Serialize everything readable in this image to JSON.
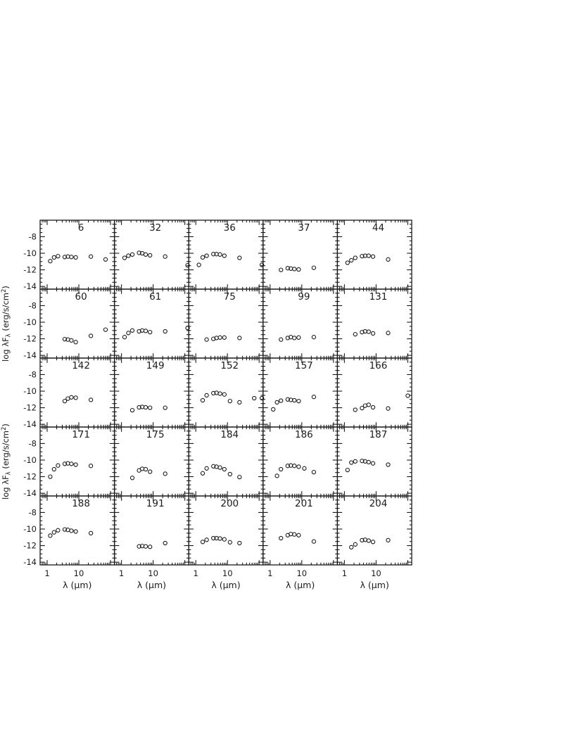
{
  "page": {
    "colors": {
      "ink": "#1a1a1a",
      "background": "#ffffff"
    }
  },
  "chart_data": {
    "type": "scatter",
    "title": "",
    "description": "5x5 grid of spectral energy distributions (open circles), log-log panels",
    "grid": {
      "rows": 5,
      "cols": 5
    },
    "xlabel": "λ (μm)",
    "ylabel_parts": {
      "pre": "log λF",
      "sub": "λ",
      "mid": " (erg/s/cm",
      "sup": "2",
      "post": ")"
    },
    "xscale": "log",
    "xlim": [
      0.6,
      140
    ],
    "xticks_major": [
      1,
      10,
      100
    ],
    "xticks_minor": [
      0.7,
      0.8,
      0.9,
      2,
      3,
      4,
      5,
      6,
      7,
      8,
      9,
      20,
      30,
      40,
      50,
      60,
      70,
      80,
      90
    ],
    "xticklabels": [
      "1",
      "10"
    ],
    "ylim": [
      -14.3,
      -6.0
    ],
    "yticks": [
      -8,
      -10,
      -12,
      -14
    ],
    "yticklabels": [
      "-8",
      "-10",
      "-12",
      "-14"
    ],
    "ytick_minor_step": 0.5,
    "legend": null,
    "gridlines": false,
    "marker": "open-circle",
    "panels": [
      {
        "label": "6",
        "points": [
          [
            1.25,
            -10.95
          ],
          [
            1.65,
            -10.5
          ],
          [
            2.2,
            -10.35
          ],
          [
            3.6,
            -10.45
          ],
          [
            4.5,
            -10.4
          ],
          [
            5.8,
            -10.45
          ],
          [
            8,
            -10.5
          ],
          [
            24,
            -10.4
          ],
          [
            70,
            -10.75
          ]
        ]
      },
      {
        "label": "32",
        "points": [
          [
            1.25,
            -10.55
          ],
          [
            1.65,
            -10.3
          ],
          [
            2.2,
            -10.15
          ],
          [
            3.6,
            -9.95
          ],
          [
            4.5,
            -10.0
          ],
          [
            5.8,
            -10.15
          ],
          [
            8,
            -10.25
          ],
          [
            24,
            -10.4
          ]
        ]
      },
      {
        "label": "36",
        "points": [
          [
            0.55,
            -11.45
          ],
          [
            1.25,
            -11.4
          ],
          [
            1.65,
            -10.5
          ],
          [
            2.2,
            -10.3
          ],
          [
            3.6,
            -10.1
          ],
          [
            4.5,
            -10.1
          ],
          [
            5.8,
            -10.15
          ],
          [
            8,
            -10.3
          ],
          [
            24,
            -10.55
          ]
        ]
      },
      {
        "label": "37",
        "points": [
          [
            0.55,
            -11.4
          ],
          [
            2.2,
            -12.0
          ],
          [
            3.6,
            -11.8
          ],
          [
            4.5,
            -11.85
          ],
          [
            5.8,
            -11.9
          ],
          [
            8,
            -11.95
          ],
          [
            24,
            -11.75
          ]
        ]
      },
      {
        "label": "44",
        "points": [
          [
            1.25,
            -11.15
          ],
          [
            1.65,
            -10.85
          ],
          [
            2.2,
            -10.55
          ],
          [
            3.6,
            -10.35
          ],
          [
            4.5,
            -10.3
          ],
          [
            5.8,
            -10.3
          ],
          [
            8,
            -10.4
          ],
          [
            24,
            -10.75
          ]
        ]
      },
      {
        "label": "60",
        "points": [
          [
            3.6,
            -12.05
          ],
          [
            4.5,
            -12.1
          ],
          [
            5.8,
            -12.2
          ],
          [
            8,
            -12.4
          ],
          [
            24,
            -11.65
          ],
          [
            70,
            -10.9
          ]
        ]
      },
      {
        "label": "61",
        "points": [
          [
            1.25,
            -11.8
          ],
          [
            1.65,
            -11.3
          ],
          [
            2.2,
            -11.0
          ],
          [
            3.6,
            -11.1
          ],
          [
            4.5,
            -11.0
          ],
          [
            5.8,
            -11.05
          ],
          [
            8,
            -11.2
          ],
          [
            24,
            -11.1
          ]
        ]
      },
      {
        "label": "75",
        "points": [
          [
            0.55,
            -10.7
          ],
          [
            2.2,
            -12.1
          ],
          [
            3.6,
            -12.0
          ],
          [
            4.5,
            -11.9
          ],
          [
            5.8,
            -11.85
          ],
          [
            8,
            -11.85
          ],
          [
            24,
            -11.9
          ]
        ]
      },
      {
        "label": "99",
        "points": [
          [
            2.2,
            -12.1
          ],
          [
            3.6,
            -11.9
          ],
          [
            4.5,
            -11.8
          ],
          [
            5.8,
            -11.9
          ],
          [
            8,
            -11.85
          ],
          [
            24,
            -11.8
          ]
        ]
      },
      {
        "label": "131",
        "points": [
          [
            2.2,
            -11.45
          ],
          [
            3.6,
            -11.2
          ],
          [
            4.5,
            -11.1
          ],
          [
            5.8,
            -11.15
          ],
          [
            8,
            -11.35
          ],
          [
            24,
            -11.3
          ]
        ]
      },
      {
        "label": "142",
        "points": [
          [
            3.6,
            -11.2
          ],
          [
            4.5,
            -10.9
          ],
          [
            5.8,
            -10.75
          ],
          [
            8,
            -10.8
          ],
          [
            24,
            -11.05
          ]
        ]
      },
      {
        "label": "149",
        "points": [
          [
            2.2,
            -12.3
          ],
          [
            3.6,
            -11.95
          ],
          [
            4.5,
            -11.9
          ],
          [
            5.8,
            -11.95
          ],
          [
            8,
            -12.0
          ],
          [
            24,
            -12.0
          ]
        ]
      },
      {
        "label": "152",
        "points": [
          [
            1.65,
            -11.1
          ],
          [
            2.2,
            -10.5
          ],
          [
            3.6,
            -10.25
          ],
          [
            4.5,
            -10.2
          ],
          [
            5.8,
            -10.3
          ],
          [
            8,
            -10.4
          ],
          [
            12,
            -11.2
          ],
          [
            24,
            -11.35
          ],
          [
            70,
            -10.85
          ]
        ]
      },
      {
        "label": "157",
        "points": [
          [
            0.55,
            -10.85
          ],
          [
            1.25,
            -12.2
          ],
          [
            1.65,
            -11.35
          ],
          [
            2.2,
            -11.15
          ],
          [
            3.6,
            -11.0
          ],
          [
            4.5,
            -11.05
          ],
          [
            5.8,
            -11.1
          ],
          [
            8,
            -11.2
          ],
          [
            24,
            -10.7
          ]
        ]
      },
      {
        "label": "166",
        "points": [
          [
            2.2,
            -12.25
          ],
          [
            3.6,
            -12.05
          ],
          [
            4.5,
            -11.75
          ],
          [
            5.8,
            -11.65
          ],
          [
            8,
            -11.95
          ],
          [
            24,
            -12.1
          ],
          [
            100,
            -10.55
          ]
        ]
      },
      {
        "label": "171",
        "points": [
          [
            1.25,
            -12.0
          ],
          [
            1.65,
            -11.1
          ],
          [
            2.2,
            -10.65
          ],
          [
            3.6,
            -10.45
          ],
          [
            4.5,
            -10.4
          ],
          [
            5.8,
            -10.45
          ],
          [
            8,
            -10.55
          ],
          [
            24,
            -10.7
          ]
        ]
      },
      {
        "label": "175",
        "points": [
          [
            2.2,
            -12.15
          ],
          [
            3.6,
            -11.25
          ],
          [
            4.5,
            -11.05
          ],
          [
            5.8,
            -11.1
          ],
          [
            8,
            -11.4
          ],
          [
            24,
            -11.65
          ]
        ]
      },
      {
        "label": "184",
        "points": [
          [
            1.65,
            -11.6
          ],
          [
            2.2,
            -11.0
          ],
          [
            3.6,
            -10.75
          ],
          [
            4.5,
            -10.8
          ],
          [
            5.8,
            -10.9
          ],
          [
            8,
            -11.1
          ],
          [
            12,
            -11.7
          ],
          [
            24,
            -12.05
          ]
        ]
      },
      {
        "label": "186",
        "points": [
          [
            1.65,
            -11.9
          ],
          [
            2.2,
            -11.1
          ],
          [
            3.6,
            -10.7
          ],
          [
            4.5,
            -10.65
          ],
          [
            5.8,
            -10.7
          ],
          [
            8,
            -10.8
          ],
          [
            12,
            -11.0
          ],
          [
            24,
            -11.45
          ]
        ]
      },
      {
        "label": "187",
        "points": [
          [
            1.25,
            -11.2
          ],
          [
            1.65,
            -10.3
          ],
          [
            2.2,
            -10.15
          ],
          [
            3.6,
            -10.1
          ],
          [
            4.5,
            -10.15
          ],
          [
            5.8,
            -10.25
          ],
          [
            8,
            -10.4
          ],
          [
            24,
            -10.55
          ]
        ]
      },
      {
        "label": "188",
        "points": [
          [
            1.25,
            -10.8
          ],
          [
            1.65,
            -10.4
          ],
          [
            2.2,
            -10.15
          ],
          [
            3.6,
            -10.05
          ],
          [
            4.5,
            -10.1
          ],
          [
            5.8,
            -10.2
          ],
          [
            8,
            -10.3
          ],
          [
            24,
            -10.5
          ]
        ]
      },
      {
        "label": "191",
        "points": [
          [
            3.6,
            -12.1
          ],
          [
            4.5,
            -12.05
          ],
          [
            5.8,
            -12.1
          ],
          [
            8,
            -12.15
          ],
          [
            24,
            -11.7
          ]
        ]
      },
      {
        "label": "200",
        "points": [
          [
            1.65,
            -11.55
          ],
          [
            2.2,
            -11.3
          ],
          [
            3.6,
            -11.1
          ],
          [
            4.5,
            -11.1
          ],
          [
            5.8,
            -11.15
          ],
          [
            8,
            -11.25
          ],
          [
            12,
            -11.6
          ],
          [
            24,
            -11.7
          ]
        ]
      },
      {
        "label": "201",
        "points": [
          [
            2.2,
            -11.1
          ],
          [
            3.6,
            -10.75
          ],
          [
            4.5,
            -10.6
          ],
          [
            5.8,
            -10.65
          ],
          [
            8,
            -10.75
          ],
          [
            24,
            -11.5
          ]
        ]
      },
      {
        "label": "204",
        "points": [
          [
            1.65,
            -12.2
          ],
          [
            2.2,
            -11.85
          ],
          [
            3.6,
            -11.35
          ],
          [
            4.5,
            -11.3
          ],
          [
            5.8,
            -11.4
          ],
          [
            8,
            -11.55
          ],
          [
            24,
            -11.35
          ]
        ]
      }
    ]
  }
}
